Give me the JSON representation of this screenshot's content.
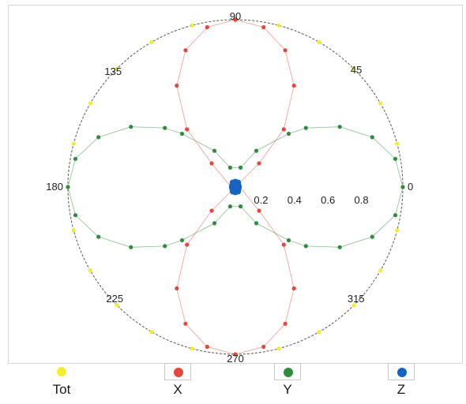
{
  "chart_data": {
    "type": "polar-scatter",
    "angle_ticks": [
      "0",
      "45",
      "90",
      "135",
      "180",
      "225",
      "270",
      "315"
    ],
    "radial_ticks": [
      "0.2",
      "0.4",
      "0.6",
      "0.8"
    ],
    "rlim": [
      0,
      1
    ],
    "series": [
      {
        "name": "Tot",
        "color": "#f2ee2a",
        "points": [
          {
            "theta": 0,
            "r": 1.0
          },
          {
            "theta": 15,
            "r": 1.0
          },
          {
            "theta": 30,
            "r": 1.0
          },
          {
            "theta": 45,
            "r": 1.0
          },
          {
            "theta": 60,
            "r": 1.0
          },
          {
            "theta": 75,
            "r": 1.0
          },
          {
            "theta": 90,
            "r": 1.0
          },
          {
            "theta": 105,
            "r": 1.0
          },
          {
            "theta": 120,
            "r": 1.0
          },
          {
            "theta": 135,
            "r": 1.0
          },
          {
            "theta": 150,
            "r": 1.0
          },
          {
            "theta": 165,
            "r": 1.0
          },
          {
            "theta": 180,
            "r": 1.0
          },
          {
            "theta": 195,
            "r": 1.0
          },
          {
            "theta": 210,
            "r": 1.0
          },
          {
            "theta": 225,
            "r": 1.0
          },
          {
            "theta": 240,
            "r": 1.0
          },
          {
            "theta": 255,
            "r": 1.0
          },
          {
            "theta": 270,
            "r": 1.0
          },
          {
            "theta": 285,
            "r": 1.0
          },
          {
            "theta": 300,
            "r": 1.0
          },
          {
            "theta": 315,
            "r": 1.0
          },
          {
            "theta": 330,
            "r": 1.0
          },
          {
            "theta": 345,
            "r": 1.0
          }
        ]
      },
      {
        "name": "X",
        "color": "#e8453c",
        "points": [
          {
            "theta": 45,
            "r": 0.02
          },
          {
            "theta": 45,
            "r": 0.2
          },
          {
            "theta": 50,
            "r": 0.45
          },
          {
            "theta": 60,
            "r": 0.7
          },
          {
            "theta": 70,
            "r": 0.87
          },
          {
            "theta": 80,
            "r": 0.97
          },
          {
            "theta": 90,
            "r": 1.0
          },
          {
            "theta": 100,
            "r": 0.97
          },
          {
            "theta": 110,
            "r": 0.87
          },
          {
            "theta": 120,
            "r": 0.7
          },
          {
            "theta": 130,
            "r": 0.45
          },
          {
            "theta": 135,
            "r": 0.2
          },
          {
            "theta": 225,
            "r": 0.02
          },
          {
            "theta": 225,
            "r": 0.2
          },
          {
            "theta": 230,
            "r": 0.45
          },
          {
            "theta": 240,
            "r": 0.7
          },
          {
            "theta": 250,
            "r": 0.87
          },
          {
            "theta": 260,
            "r": 0.97
          },
          {
            "theta": 270,
            "r": 1.0
          },
          {
            "theta": 280,
            "r": 0.97
          },
          {
            "theta": 290,
            "r": 0.87
          },
          {
            "theta": 300,
            "r": 0.7
          },
          {
            "theta": 310,
            "r": 0.45
          },
          {
            "theta": 315,
            "r": 0.2
          }
        ]
      },
      {
        "name": "Y",
        "color": "#2f8c3f",
        "points": [
          {
            "theta": 0,
            "r": 1.0
          },
          {
            "theta": 10,
            "r": 0.97
          },
          {
            "theta": 20,
            "r": 0.87
          },
          {
            "theta": 30,
            "r": 0.72
          },
          {
            "theta": 40,
            "r": 0.55
          },
          {
            "theta": 45,
            "r": 0.45
          },
          {
            "theta": 60,
            "r": 0.25
          },
          {
            "theta": 75,
            "r": 0.12
          },
          {
            "theta": 105,
            "r": 0.12
          },
          {
            "theta": 120,
            "r": 0.25
          },
          {
            "theta": 135,
            "r": 0.45
          },
          {
            "theta": 140,
            "r": 0.55
          },
          {
            "theta": 150,
            "r": 0.72
          },
          {
            "theta": 160,
            "r": 0.87
          },
          {
            "theta": 170,
            "r": 0.97
          },
          {
            "theta": 180,
            "r": 1.0
          },
          {
            "theta": 190,
            "r": 0.97
          },
          {
            "theta": 200,
            "r": 0.87
          },
          {
            "theta": 210,
            "r": 0.72
          },
          {
            "theta": 220,
            "r": 0.55
          },
          {
            "theta": 225,
            "r": 0.45
          },
          {
            "theta": 240,
            "r": 0.25
          },
          {
            "theta": 255,
            "r": 0.12
          },
          {
            "theta": 285,
            "r": 0.12
          },
          {
            "theta": 300,
            "r": 0.25
          },
          {
            "theta": 315,
            "r": 0.45
          },
          {
            "theta": 320,
            "r": 0.55
          },
          {
            "theta": 330,
            "r": 0.72
          },
          {
            "theta": 340,
            "r": 0.87
          },
          {
            "theta": 350,
            "r": 0.97
          }
        ]
      },
      {
        "name": "Z",
        "color": "#1565c0",
        "points": [
          {
            "theta": 0,
            "r": 0.02
          },
          {
            "theta": 30,
            "r": 0.02
          },
          {
            "theta": 60,
            "r": 0.03
          },
          {
            "theta": 90,
            "r": 0.03
          },
          {
            "theta": 120,
            "r": 0.03
          },
          {
            "theta": 150,
            "r": 0.02
          },
          {
            "theta": 180,
            "r": 0.02
          },
          {
            "theta": 210,
            "r": 0.02
          },
          {
            "theta": 240,
            "r": 0.03
          },
          {
            "theta": 270,
            "r": 0.03
          },
          {
            "theta": 300,
            "r": 0.03
          },
          {
            "theta": 330,
            "r": 0.02
          }
        ]
      }
    ],
    "legend": {
      "placement": "bottom",
      "items": [
        {
          "label": "Tot",
          "color": "#f2ee2a"
        },
        {
          "label": "X",
          "color": "#e8453c"
        },
        {
          "label": "Y",
          "color": "#2f8c3f"
        },
        {
          "label": "Z",
          "color": "#1565c0"
        }
      ]
    }
  }
}
